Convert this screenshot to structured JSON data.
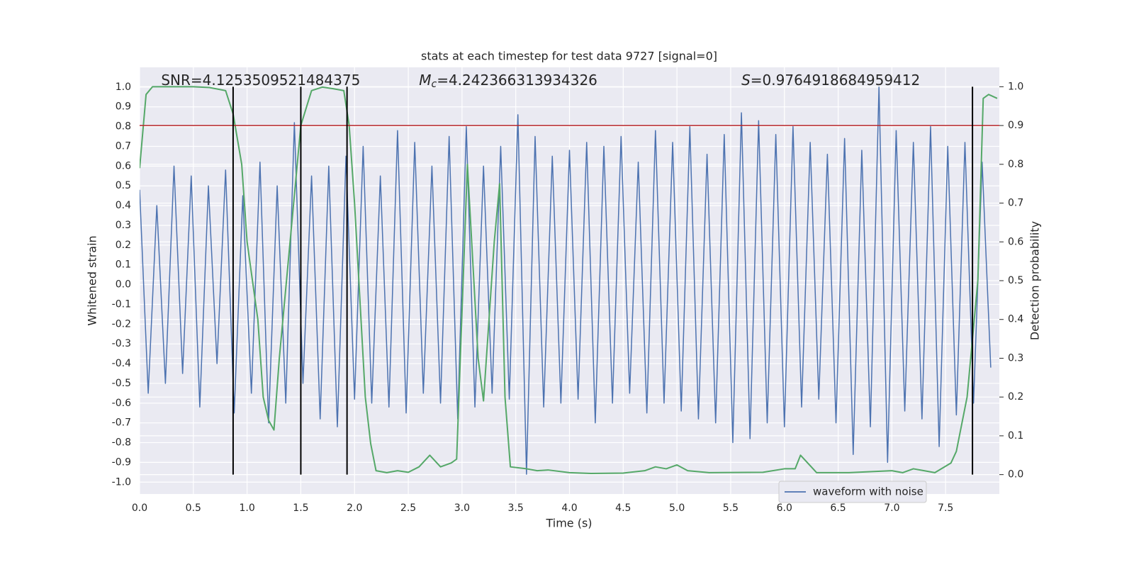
{
  "chart_data": {
    "type": "line",
    "title": "stats at each timestep for test data 9727 [signal=0]",
    "xlabel": "Time (s)",
    "ylabel": "Whitened strain",
    "y2label": "Detection probability",
    "xlim": [
      0,
      8
    ],
    "ylim": [
      -1.06,
      1.1
    ],
    "y2lim": [
      -0.05,
      1.05
    ],
    "xticks": [
      {
        "value": 0,
        "label": "0.0"
      },
      0.5,
      {
        "value": 1,
        "label": "1.0"
      },
      1.5,
      {
        "value": 2,
        "label": "2.0"
      },
      2.5,
      {
        "value": 3,
        "label": "3.0"
      },
      3.5,
      {
        "value": 4,
        "label": "4.0"
      },
      4.5,
      {
        "value": 5,
        "label": "5.0"
      },
      5.5,
      {
        "value": 6,
        "label": "6.0"
      },
      6.5,
      {
        "value": 7,
        "label": "7.0"
      },
      7.5
    ],
    "yticks": [
      {
        "value": -1,
        "label": "-1.0"
      },
      -0.9,
      -0.8,
      -0.7,
      -0.6,
      -0.5,
      -0.4,
      -0.3,
      -0.2,
      -0.1,
      {
        "value": 0,
        "label": "0.0"
      },
      0.1,
      0.2,
      0.3,
      0.4,
      0.5,
      0.6,
      0.7,
      0.8,
      0.9,
      {
        "value": 1,
        "label": "1.0"
      }
    ],
    "y2ticks": [
      {
        "value": 0,
        "label": "0.0"
      },
      0.1,
      0.2,
      0.3,
      0.4,
      0.5,
      0.6,
      0.7,
      0.8,
      0.9,
      {
        "value": 1,
        "label": "1.0"
      }
    ],
    "grid": true,
    "legend": "lower right",
    "annotations": [
      {
        "symbol": "SNR",
        "text": "=4.1253509521484375",
        "italic": false,
        "x": 0.2
      },
      {
        "symbol": "M",
        "subscript": "c",
        "text": "=4.242366313934326",
        "italic": true,
        "x": 2.6
      },
      {
        "symbol": "S",
        "text": "=0.9764918684959412",
        "italic": true,
        "x": 5.6
      }
    ],
    "threshold": {
      "value": 0.9,
      "axis": "y2",
      "color": "#b8262b"
    },
    "vlines": {
      "x": [
        0.87,
        1.5,
        1.93,
        7.75
      ],
      "span": [
        0,
        1
      ],
      "axis": "y2",
      "color": "#000000"
    },
    "series": [
      {
        "name": "waveform with noise",
        "color": "#4c72b0",
        "x": [
          0,
          0.08,
          0.16,
          0.24,
          0.32,
          0.4,
          0.48,
          0.56,
          0.64,
          0.72,
          0.8,
          0.88,
          0.96,
          1.04,
          1.12,
          1.2,
          1.28,
          1.36,
          1.44,
          1.52,
          1.6,
          1.68,
          1.76,
          1.84,
          1.92,
          2,
          2.08,
          2.16,
          2.24,
          2.32,
          2.4,
          2.48,
          2.56,
          2.64,
          2.72,
          2.8,
          2.88,
          2.96,
          3.04,
          3.12,
          3.2,
          3.28,
          3.36,
          3.44,
          3.52,
          3.6,
          3.68,
          3.76,
          3.84,
          3.92,
          4,
          4.08,
          4.16,
          4.24,
          4.32,
          4.4,
          4.48,
          4.56,
          4.64,
          4.72,
          4.8,
          4.88,
          4.96,
          5.04,
          5.12,
          5.2,
          5.28,
          5.36,
          5.44,
          5.52,
          5.6,
          5.68,
          5.76,
          5.84,
          5.92,
          6,
          6.08,
          6.16,
          6.24,
          6.32,
          6.4,
          6.48,
          6.56,
          6.64,
          6.72,
          6.8,
          6.88,
          6.96,
          7.04,
          7.12,
          7.2,
          7.28,
          7.36,
          7.44,
          7.52,
          7.6,
          7.68,
          7.76,
          7.84,
          7.92
        ],
        "values": [
          0.48,
          -0.55,
          0.4,
          -0.5,
          0.6,
          -0.45,
          0.55,
          -0.62,
          0.5,
          -0.4,
          0.58,
          -0.65,
          0.45,
          -0.55,
          0.62,
          -0.7,
          0.5,
          -0.6,
          0.82,
          -0.5,
          0.55,
          -0.68,
          0.6,
          -0.72,
          0.65,
          -0.58,
          0.7,
          -0.6,
          0.55,
          -0.62,
          0.78,
          -0.65,
          0.72,
          -0.55,
          0.6,
          -0.6,
          0.75,
          -0.68,
          0.8,
          -0.62,
          0.6,
          -0.55,
          0.7,
          -0.58,
          0.86,
          -0.96,
          0.75,
          -0.62,
          0.65,
          -0.6,
          0.68,
          -0.58,
          0.72,
          -0.7,
          0.7,
          -0.6,
          0.75,
          -0.55,
          0.62,
          -0.65,
          0.78,
          -0.6,
          0.72,
          -0.64,
          0.8,
          -0.68,
          0.66,
          -0.7,
          0.76,
          -0.8,
          0.87,
          -0.78,
          0.83,
          -0.7,
          0.76,
          -0.72,
          0.8,
          -0.62,
          0.72,
          -0.58,
          0.66,
          -0.7,
          0.74,
          -0.86,
          0.68,
          -0.72,
          1.0,
          -0.9,
          0.78,
          -0.64,
          0.72,
          -0.68,
          0.8,
          -0.82,
          0.7,
          -0.66,
          0.72,
          -0.6,
          0.62,
          -0.42
        ]
      },
      {
        "color": "#55a868",
        "axis": "y2",
        "x": [
          0,
          0.06,
          0.12,
          0.5,
          0.65,
          0.8,
          0.87,
          0.95,
          1,
          1.1,
          1.15,
          1.2,
          1.25,
          1.3,
          1.4,
          1.5,
          1.6,
          1.7,
          1.8,
          1.9,
          1.95,
          2,
          2.05,
          2.1,
          2.15,
          2.2,
          2.3,
          2.4,
          2.5,
          2.6,
          2.7,
          2.8,
          2.9,
          2.95,
          3.05,
          3.15,
          3.2,
          3.3,
          3.35,
          3.4,
          3.45,
          3.6,
          3.7,
          3.8,
          4,
          4.2,
          4.5,
          4.7,
          4.8,
          4.9,
          5,
          5.1,
          5.3,
          5.8,
          6,
          6.1,
          6.15,
          6.3,
          6.6,
          7,
          7.1,
          7.2,
          7.3,
          7.4,
          7.55,
          7.6,
          7.7,
          7.8,
          7.85,
          7.9,
          7.98
        ],
        "values": [
          0.79,
          0.98,
          1.0,
          1.0,
          0.998,
          0.99,
          0.93,
          0.8,
          0.6,
          0.4,
          0.2,
          0.14,
          0.115,
          0.3,
          0.6,
          0.9,
          0.99,
          0.999,
          0.995,
          0.99,
          0.9,
          0.7,
          0.45,
          0.2,
          0.08,
          0.01,
          0.005,
          0.01,
          0.006,
          0.02,
          0.05,
          0.02,
          0.03,
          0.04,
          0.8,
          0.3,
          0.19,
          0.6,
          0.75,
          0.2,
          0.02,
          0.015,
          0.01,
          0.012,
          0.005,
          0.003,
          0.004,
          0.01,
          0.02,
          0.015,
          0.025,
          0.01,
          0.005,
          0.006,
          0.015,
          0.015,
          0.05,
          0.005,
          0.005,
          0.01,
          0.005,
          0.015,
          0.01,
          0.005,
          0.03,
          0.06,
          0.2,
          0.5,
          0.97,
          0.98,
          0.97
        ]
      }
    ]
  }
}
